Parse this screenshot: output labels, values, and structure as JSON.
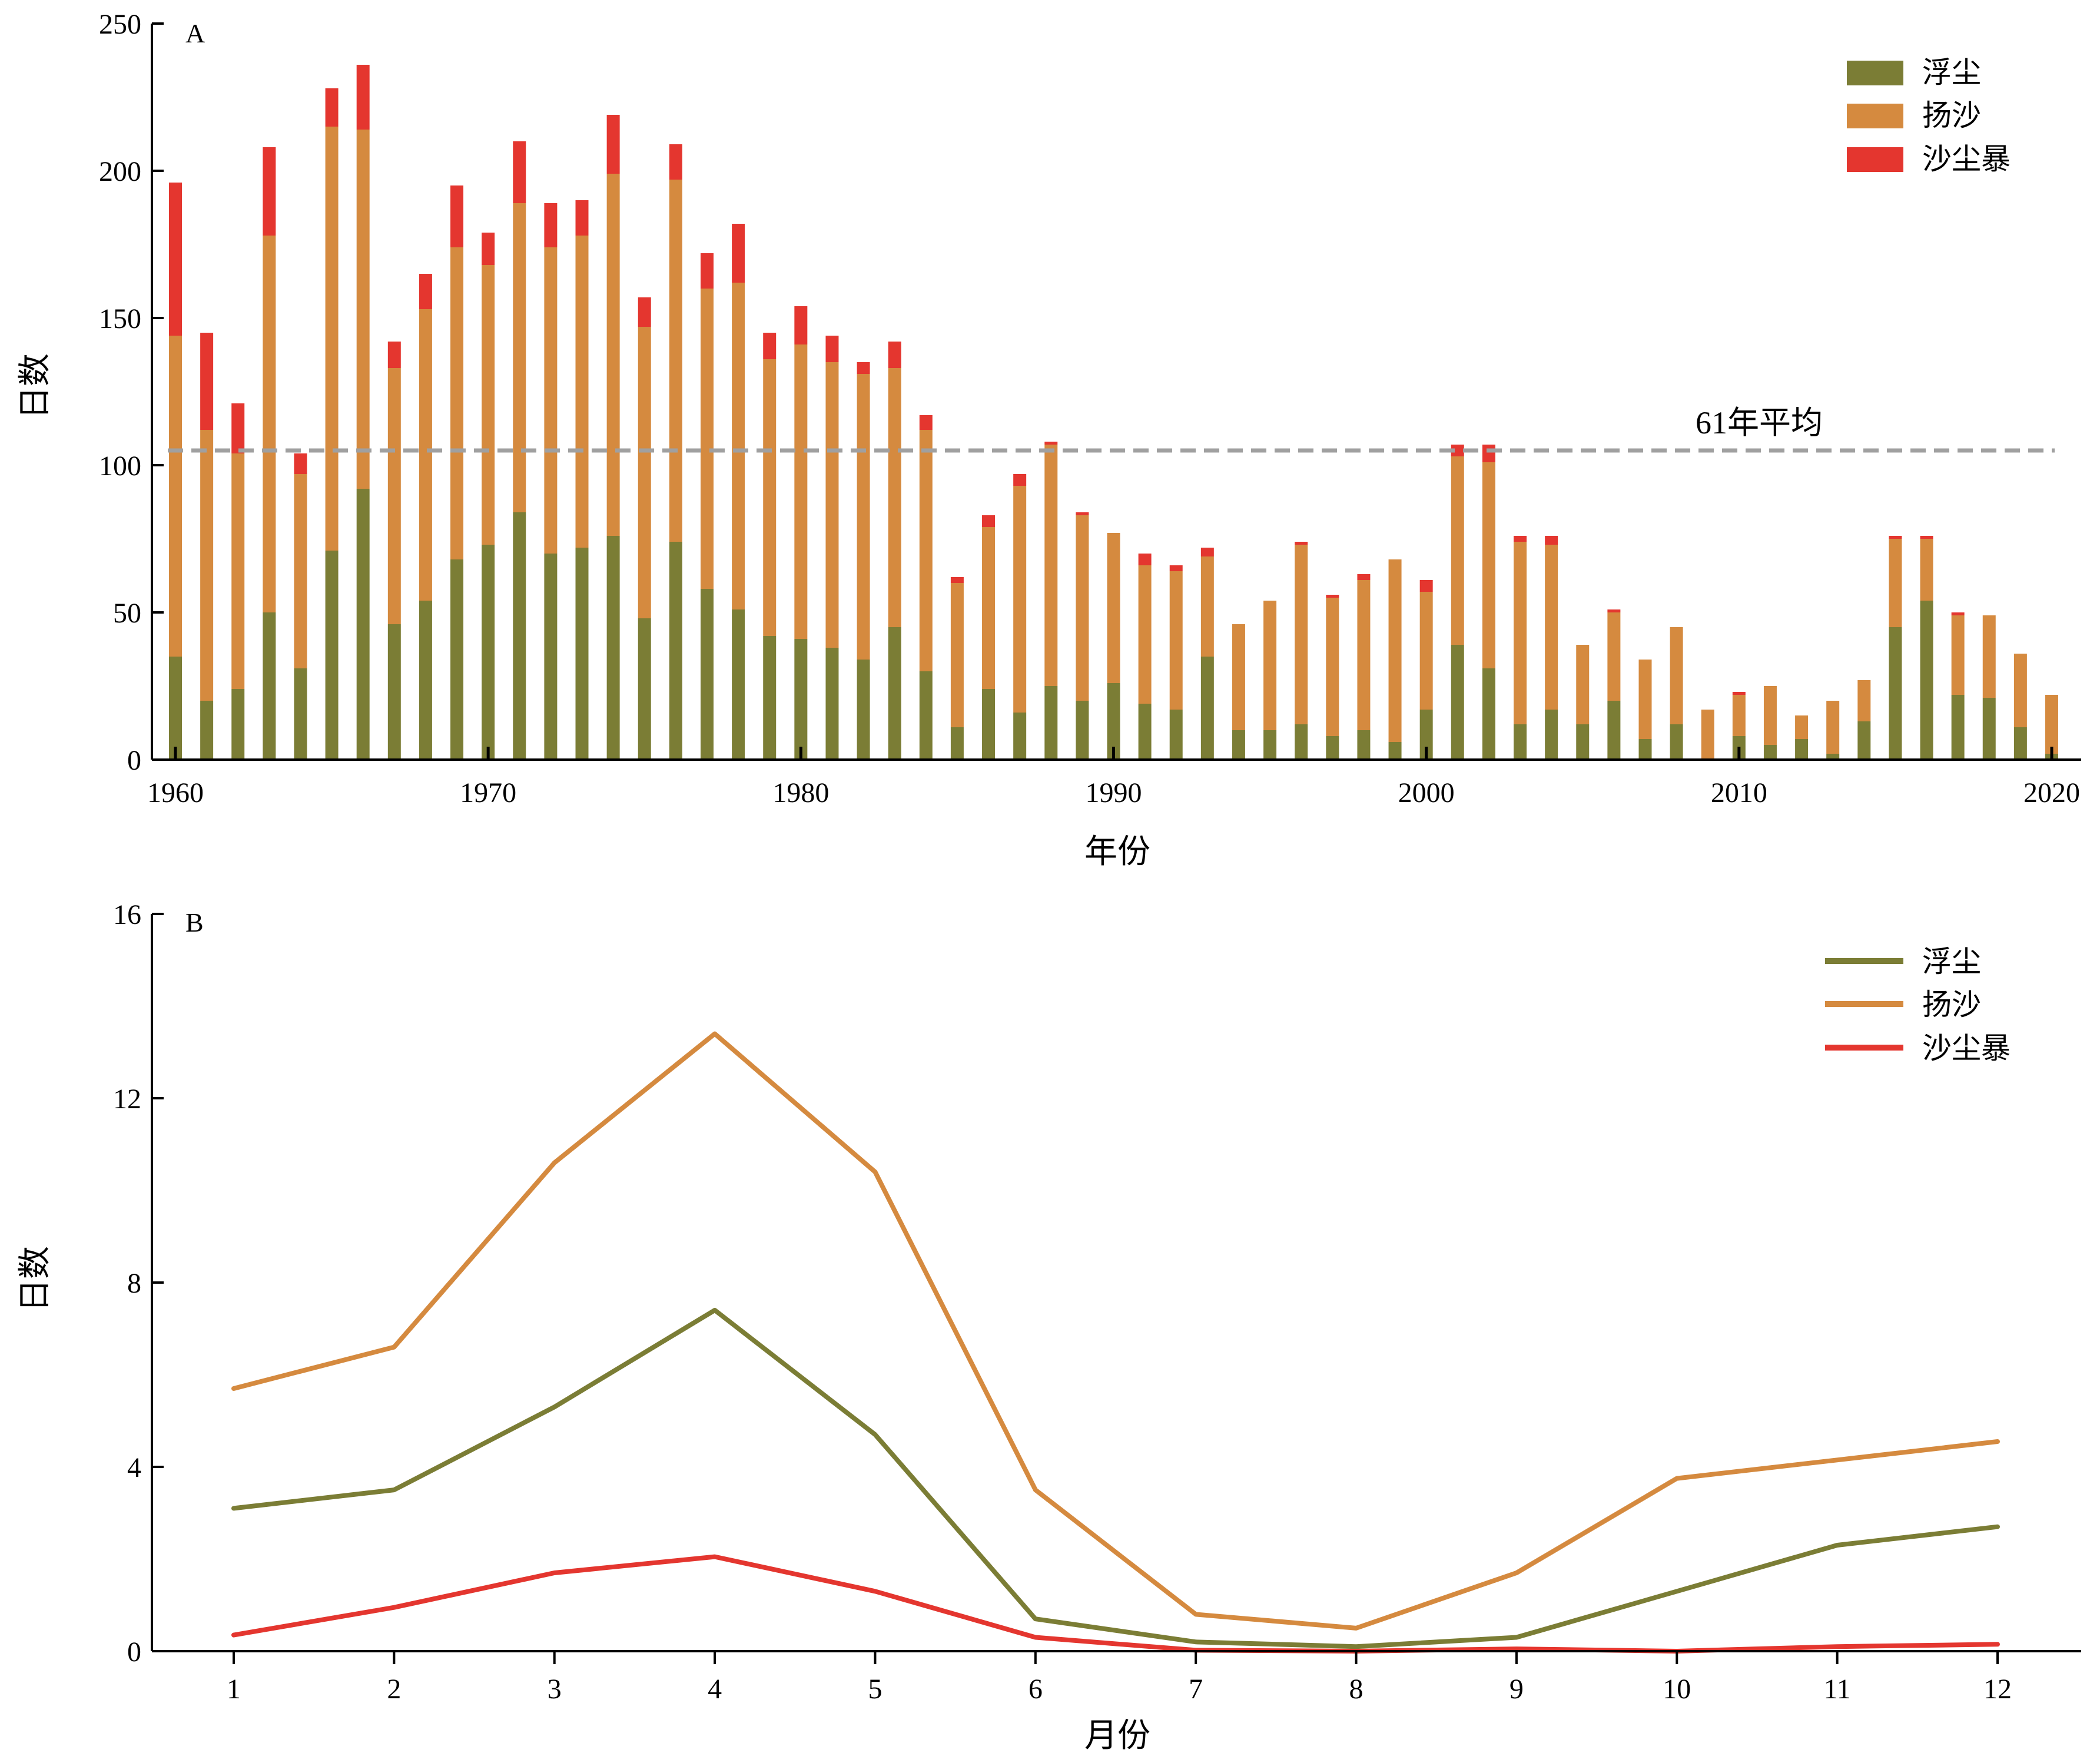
{
  "chart_data": [
    {
      "panel_label": "A",
      "type": "bar",
      "stacked": true,
      "xlabel": "年份",
      "ylabel": "日数",
      "ylim": [
        0,
        250
      ],
      "yticks": [
        0,
        50,
        100,
        150,
        200,
        250
      ],
      "xticks": [
        1960,
        1970,
        1980,
        1990,
        2000,
        2010,
        2020
      ],
      "legend_position": "top-right",
      "x": [
        1960,
        1961,
        1962,
        1963,
        1964,
        1965,
        1966,
        1967,
        1968,
        1969,
        1970,
        1971,
        1972,
        1973,
        1974,
        1975,
        1976,
        1977,
        1978,
        1979,
        1980,
        1981,
        1982,
        1983,
        1984,
        1985,
        1986,
        1987,
        1988,
        1989,
        1990,
        1991,
        1992,
        1993,
        1994,
        1995,
        1996,
        1997,
        1998,
        1999,
        2000,
        2001,
        2002,
        2003,
        2004,
        2005,
        2006,
        2007,
        2008,
        2009,
        2010,
        2011,
        2012,
        2013,
        2014,
        2015,
        2016,
        2017,
        2018,
        2019,
        2020
      ],
      "series": [
        {
          "name": "浮尘",
          "color": "#7b7d35",
          "values": [
            35,
            20,
            24,
            50,
            31,
            71,
            92,
            46,
            54,
            68,
            73,
            84,
            70,
            72,
            76,
            48,
            74,
            58,
            51,
            42,
            41,
            38,
            34,
            45,
            30,
            11,
            24,
            16,
            25,
            20,
            26,
            19,
            17,
            35,
            10,
            10,
            12,
            8,
            10,
            6,
            17,
            39,
            31,
            12,
            17,
            12,
            20,
            7,
            12,
            0,
            8,
            5,
            7,
            2,
            13,
            45,
            54,
            22,
            21,
            11,
            2
          ],
          "comment_none": null
        },
        {
          "name": "扬沙",
          "color": "#d58a3f",
          "values": [
            109,
            92,
            80,
            128,
            66,
            144,
            122,
            87,
            99,
            106,
            95,
            105,
            104,
            106,
            123,
            99,
            123,
            102,
            111,
            94,
            100,
            97,
            97,
            88,
            82,
            49,
            55,
            77,
            82,
            63,
            51,
            47,
            47,
            34,
            36,
            44,
            61,
            47,
            51,
            62,
            40,
            64,
            70,
            62,
            56,
            27,
            30,
            27,
            33,
            17,
            14,
            20,
            8,
            18,
            14,
            30,
            21,
            27,
            28,
            25,
            20
          ]
        },
        {
          "name": "沙尘暴",
          "color": "#e4362f",
          "values": [
            52,
            33,
            17,
            30,
            7,
            13,
            22,
            9,
            12,
            21,
            11,
            21,
            15,
            12,
            20,
            10,
            12,
            12,
            20,
            9,
            13,
            9,
            4,
            9,
            5,
            2,
            4,
            4,
            1,
            1,
            0,
            4,
            2,
            3,
            0,
            0,
            1,
            1,
            2,
            0,
            4,
            4,
            6,
            2,
            3,
            0,
            1,
            0,
            0,
            0,
            1,
            0,
            0,
            0,
            0,
            1,
            1,
            1,
            0,
            0,
            0
          ]
        }
      ],
      "reference_line": {
        "value": 105,
        "label": "61年平均",
        "color": "#a0a0a0"
      }
    },
    {
      "panel_label": "B",
      "type": "line",
      "xlabel": "月份",
      "ylabel": "日数",
      "ylim": [
        0,
        16
      ],
      "yticks": [
        0,
        4,
        8,
        12,
        16
      ],
      "x": [
        1,
        2,
        3,
        4,
        5,
        6,
        7,
        8,
        9,
        10,
        11,
        12
      ],
      "legend_position": "top-right",
      "series": [
        {
          "name": "浮尘",
          "color": "#7b7d35",
          "values": [
            3.1,
            3.5,
            5.3,
            7.4,
            4.7,
            0.7,
            0.2,
            0.1,
            0.3,
            1.3,
            2.3,
            2.7
          ]
        },
        {
          "name": "扬沙",
          "color": "#d58a3f",
          "values": [
            5.7,
            6.6,
            10.6,
            13.4,
            10.4,
            3.5,
            0.8,
            0.5,
            1.7,
            3.75,
            4.15,
            4.55
          ]
        },
        {
          "name": "沙尘暴",
          "color": "#e4362f",
          "values": [
            0.35,
            0.95,
            1.7,
            2.05,
            1.3,
            0.3,
            0.02,
            0.0,
            0.05,
            0.0,
            0.1,
            0.15
          ]
        }
      ]
    }
  ]
}
